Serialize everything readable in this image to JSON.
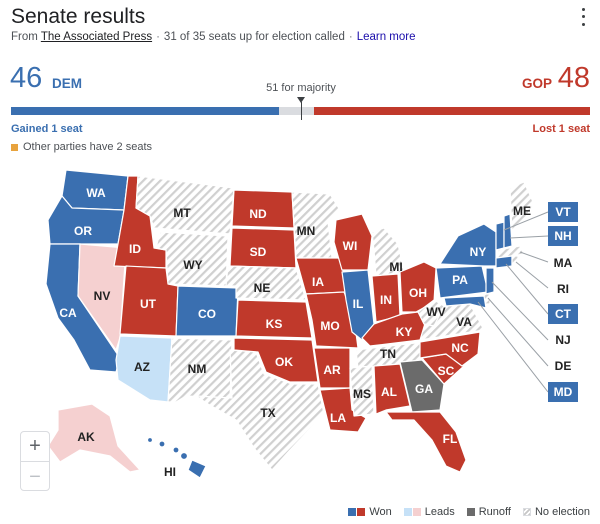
{
  "header": {
    "title": "Senate results",
    "from_label": "From",
    "source": "The Associated Press",
    "called": "31 of 35 seats up for election called",
    "learn_more": "Learn more"
  },
  "tally": {
    "dem_seats": "46",
    "dem_label": "DEM",
    "gop_seats": "48",
    "gop_label": "GOP",
    "majority": "51 for majority",
    "dem_change": "Gained 1 seat",
    "gop_change": "Lost 1 seat",
    "other_parties": "Other parties have 2 seats"
  },
  "colors": {
    "dem_won": "#3a6fb0",
    "dem_leads": "#c6e1f7",
    "gop_won": "#c0392b",
    "gop_leads": "#f5d0d0",
    "runoff": "#6b6b6b",
    "no_election": "#d4d4d4",
    "other": "#e8a33d"
  },
  "states": {
    "WA": "WA",
    "OR": "OR",
    "CA": "CA",
    "NV": "NV",
    "ID": "ID",
    "MT": "MT",
    "WY": "WY",
    "UT": "UT",
    "CO": "CO",
    "AZ": "AZ",
    "NM": "NM",
    "ND": "ND",
    "SD": "SD",
    "NE": "NE",
    "KS": "KS",
    "OK": "OK",
    "TX": "TX",
    "MN": "MN",
    "IA": "IA",
    "MO": "MO",
    "AR": "AR",
    "LA": "LA",
    "WI": "WI",
    "IL": "IL",
    "MI": "MI",
    "IN": "IN",
    "OH": "OH",
    "KY": "KY",
    "TN": "TN",
    "MS": "MS",
    "AL": "AL",
    "GA": "GA",
    "FL": "FL",
    "SC": "SC",
    "NC": "NC",
    "VA": "VA",
    "WV": "WV",
    "PA": "PA",
    "NY": "NY",
    "ME": "ME",
    "AK": "AK",
    "HI": "HI"
  },
  "callouts": [
    "VT",
    "NH",
    "MA",
    "RI",
    "CT",
    "NJ",
    "DE",
    "MD"
  ],
  "zoom": {
    "in": "+",
    "out": "−"
  },
  "legend": {
    "won": "Won",
    "leads": "Leads",
    "runoff": "Runoff",
    "no_election": "No election"
  }
}
